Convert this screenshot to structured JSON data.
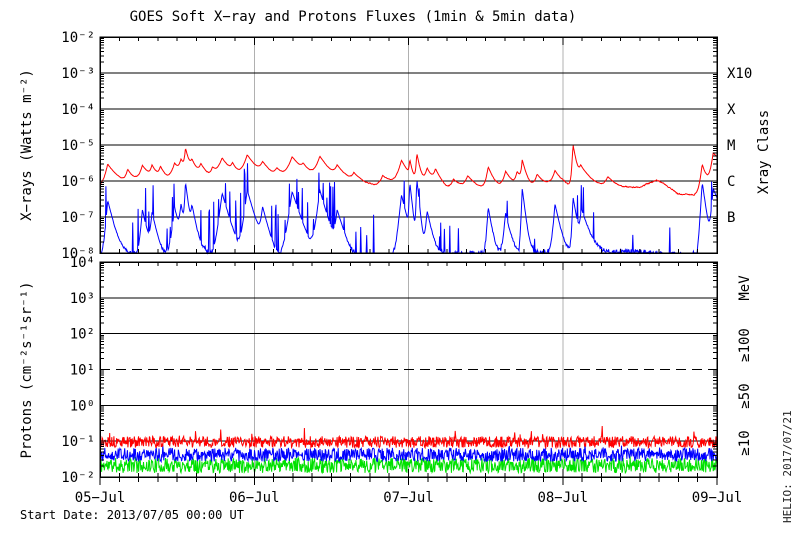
{
  "title": "GOES Soft X−ray and Protons Fluxes   (1min & 5min data)",
  "footer": {
    "start_date": "Start Date: 2013/07/05 00:00 UT",
    "stamp": "HELIO: 2017/07/21"
  },
  "colors": {
    "grid_gray": "#b0b0b0",
    "axis_black": "#000000",
    "xray_long_red": "#ff0000",
    "xray_short_blue": "#0000ff",
    "proton_ge10_red": "#ff0000",
    "proton_ge50_blue": "#0000ff",
    "proton_ge100_green": "#00e100"
  },
  "x_axis": {
    "day_labels": [
      "05−Jul",
      "06−Jul",
      "07−Jul",
      "08−Jul",
      "09−Jul"
    ],
    "total_h": 96,
    "major_every_h": 24,
    "minor_every_h": 3
  },
  "chart_data": [
    {
      "type": "line",
      "panel": "xray",
      "title": "GOES soft X-ray flux",
      "x_unit": "hours since 2013/07/05 00:00 UT",
      "x_range": [
        0,
        96
      ],
      "y_log": true,
      "y_range_exp": [
        -2,
        -8
      ],
      "ylabel": "X−rays (Watts m⁻²)",
      "right_title": "Xray Class",
      "y_tick_exps": [
        -2,
        -3,
        -4,
        -5,
        -6,
        -7,
        -8
      ],
      "y_tick_labels": [
        "10⁻²",
        "10⁻³",
        "10⁻⁴",
        "10⁻⁵",
        "10⁻⁶",
        "10⁻⁷",
        "10⁻⁸"
      ],
      "hlines_exp": [
        -3,
        -4,
        -5,
        -6,
        -7
      ],
      "class_labels": [
        {
          "text": "X10",
          "exp": -3
        },
        {
          "text": "X",
          "exp": -4
        },
        {
          "text": "M",
          "exp": -5
        },
        {
          "text": "C",
          "exp": -6
        },
        {
          "text": "B",
          "exp": -7
        }
      ],
      "series": [
        {
          "name": "xray-short",
          "color": "#0000ff",
          "seed": 7,
          "noise_dex": 0.13,
          "baseline": [
            [
              0,
              9e-09
            ],
            [
              96,
              9e-09
            ]
          ],
          "bursts": [
            {
              "t0": 0,
              "t1": 44,
              "prob": 0.08,
              "dex": 1.25
            },
            {
              "t0": 44,
              "t1": 78,
              "prob": 0.03,
              "dex": 1.0
            },
            {
              "t0": 78,
              "t1": 96,
              "prob": 0.012,
              "dex": 0.8
            }
          ],
          "spikes": [
            [
              1.2,
              2.8e-07,
              0.2,
              0.6
            ],
            [
              6.6,
              1.5e-07,
              0.2,
              0.5
            ],
            [
              8.1,
              1.2e-07,
              0.2,
              0.5
            ],
            [
              11.6,
              1.8e-07,
              0.25,
              0.5
            ],
            [
              12.6,
              2e-07,
              0.2,
              0.4
            ],
            [
              13.3,
              9e-07,
              0.1,
              0.3
            ],
            [
              14.3,
              1.8e-07,
              0.2,
              0.5
            ],
            [
              19.0,
              4.5e-07,
              0.3,
              0.7
            ],
            [
              22.9,
              5.5e-07,
              0.3,
              0.7
            ],
            [
              25.3,
              1.7e-07,
              0.25,
              0.6
            ],
            [
              29.9,
              5e-07,
              0.35,
              0.8
            ],
            [
              34.2,
              5.5e-07,
              0.3,
              0.7
            ],
            [
              36.9,
              1.4e-07,
              0.25,
              0.7
            ],
            [
              46.9,
              4e-07,
              0.25,
              0.6
            ],
            [
              48.2,
              9e-07,
              0.08,
              0.25
            ],
            [
              49.3,
              1.1e-06,
              0.08,
              0.25
            ],
            [
              50.9,
              1.4e-07,
              0.2,
              0.5
            ],
            [
              60.4,
              1.8e-07,
              0.15,
              0.4
            ],
            [
              63.1,
              1.2e-07,
              0.2,
              0.5
            ],
            [
              65.7,
              6e-07,
              0.1,
              0.3
            ],
            [
              70.8,
              2.2e-07,
              0.2,
              0.5
            ],
            [
              73.6,
              3.5e-07,
              0.1,
              0.4
            ],
            [
              74.9,
              1.5e-07,
              0.2,
              0.8
            ],
            [
              93.7,
              9e-07,
              0.15,
              0.35
            ],
            [
              95.4,
              6e-07,
              0.2,
              1.0
            ]
          ]
        },
        {
          "name": "xray-long",
          "color": "#ff0000",
          "seed": 3,
          "noise_dex": 0.02,
          "baseline": [
            [
              0,
              7e-07
            ],
            [
              6,
              8e-07
            ],
            [
              16,
              8e-07
            ],
            [
              24,
              7e-07
            ],
            [
              32,
              6.5e-07
            ],
            [
              40,
              5.5e-07
            ],
            [
              46,
              6e-07
            ],
            [
              50,
              5.5e-07
            ],
            [
              54,
              4.5e-07
            ],
            [
              58,
              4.5e-07
            ],
            [
              62,
              5e-07
            ],
            [
              66,
              6e-07
            ],
            [
              70,
              8e-07
            ],
            [
              72,
              9e-07
            ],
            [
              76,
              5.5e-07
            ],
            [
              80,
              4.5e-07
            ],
            [
              84,
              6e-07
            ],
            [
              86.5,
              1.1e-06
            ],
            [
              88,
              9e-07
            ],
            [
              90,
              5e-07
            ],
            [
              92.5,
              4.5e-07
            ],
            [
              94,
              6e-07
            ],
            [
              96,
              1.2e-06
            ]
          ],
          "spikes": [
            [
              1.2,
              2.2e-06,
              0.4,
              1.2
            ],
            [
              4.3,
              1.1e-06,
              0.3,
              0.8
            ],
            [
              6.6,
              1.7e-06,
              0.4,
              1.0
            ],
            [
              8.1,
              1.5e-06,
              0.35,
              0.8
            ],
            [
              9.4,
              1.3e-06,
              0.3,
              0.7
            ],
            [
              11.6,
              2e-06,
              0.5,
              0.9
            ],
            [
              12.6,
              2.4e-06,
              0.35,
              0.7
            ],
            [
              13.3,
              6e-06,
              0.15,
              0.45
            ],
            [
              14.3,
              2.2e-06,
              0.4,
              1.0
            ],
            [
              15.7,
              1.5e-06,
              0.35,
              0.9
            ],
            [
              17.5,
              1e-06,
              0.3,
              0.8
            ],
            [
              19.0,
              3.3e-06,
              0.6,
              1.3
            ],
            [
              20.6,
              1.3e-06,
              0.3,
              0.7
            ],
            [
              22.9,
              4.3e-06,
              0.6,
              1.4
            ],
            [
              25.3,
              1.9e-06,
              0.5,
              1.3
            ],
            [
              27.5,
              9e-07,
              0.4,
              1.0
            ],
            [
              29.9,
              3.8e-06,
              0.7,
              1.6
            ],
            [
              31.6,
              1.1e-06,
              0.4,
              0.9
            ],
            [
              34.2,
              3.8e-06,
              0.6,
              1.4
            ],
            [
              36.9,
              1.5e-06,
              0.5,
              1.4
            ],
            [
              39.5,
              8e-07,
              0.4,
              1.2
            ],
            [
              44.0,
              7e-07,
              0.5,
              1.5
            ],
            [
              46.9,
              3e-06,
              0.5,
              1.1
            ],
            [
              48.2,
              2.5e-06,
              0.1,
              0.3
            ],
            [
              49.3,
              4.8e-06,
              0.12,
              0.4
            ],
            [
              50.9,
              1.5e-06,
              0.4,
              0.9
            ],
            [
              52.2,
              1.3e-06,
              0.35,
              0.9
            ],
            [
              55.0,
              6e-07,
              0.4,
              1.2
            ],
            [
              57.2,
              8e-07,
              0.5,
              1.5
            ],
            [
              60.4,
              1.9e-06,
              0.3,
              0.8
            ],
            [
              63.1,
              1.3e-06,
              0.4,
              1.0
            ],
            [
              64.9,
              1.1e-06,
              0.3,
              0.9
            ],
            [
              65.7,
              2.8e-06,
              0.15,
              0.5
            ],
            [
              68.0,
              9e-07,
              0.4,
              1.2
            ],
            [
              70.8,
              1.2e-06,
              0.4,
              0.9
            ],
            [
              73.6,
              9.5e-06,
              0.12,
              0.4
            ],
            [
              74.8,
              1.8e-06,
              0.4,
              1.8
            ],
            [
              79.0,
              7e-07,
              0.5,
              1.8
            ],
            [
              93.7,
              2.4e-06,
              0.25,
              0.6
            ],
            [
              95.4,
              5e-06,
              0.3,
              2.0
            ]
          ]
        }
      ]
    },
    {
      "type": "line",
      "panel": "protons",
      "title": "GOES proton flux",
      "x_unit": "hours since 2013/07/05 00:00 UT",
      "x_range": [
        0,
        96
      ],
      "y_log": true,
      "y_range_exp": [
        4,
        -2
      ],
      "ylabel": "Protons (cm⁻²s⁻¹sr⁻¹)",
      "right_title": "MeV",
      "y_tick_exps": [
        4,
        3,
        2,
        1,
        0,
        -1,
        -2
      ],
      "y_tick_labels": [
        "10⁴",
        "10³",
        "10²",
        "10¹",
        "10⁰",
        "10⁻¹",
        "10⁻²"
      ],
      "hlines_exp": [
        3,
        2,
        0,
        -1
      ],
      "dashed_hline_exp": 1,
      "series": [
        {
          "name": "proton-ge100",
          "label": "≥100",
          "color": "#00e100",
          "seed": 11,
          "level": 0.021,
          "noise_dex": 0.21,
          "spike_prob": 0.01,
          "spike_dex": 0.3
        },
        {
          "name": "proton-ge50",
          "label": "≥50",
          "color": "#0000ff",
          "seed": 12,
          "level": 0.042,
          "noise_dex": 0.19,
          "spike_prob": 0.01,
          "spike_dex": 0.3
        },
        {
          "name": "proton-ge10",
          "label": "≥10",
          "color": "#ff0000",
          "seed": 13,
          "level": 0.095,
          "noise_dex": 0.16,
          "spike_prob": 0.02,
          "spike_dex": 0.35
        }
      ]
    }
  ]
}
